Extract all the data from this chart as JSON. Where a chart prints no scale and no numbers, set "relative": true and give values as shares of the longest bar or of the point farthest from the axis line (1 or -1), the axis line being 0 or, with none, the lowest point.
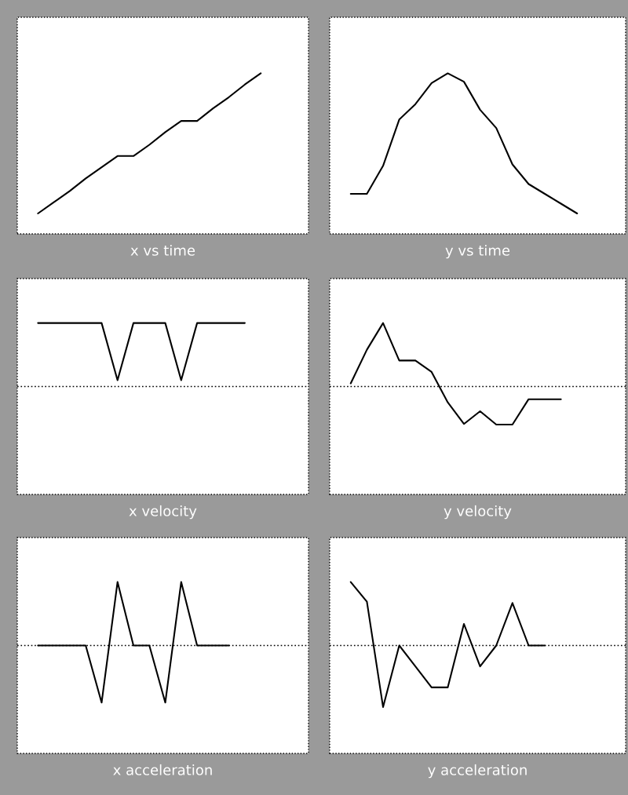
{
  "chart_data": [
    {
      "type": "line",
      "xlabel": "x vs time",
      "relative": true,
      "categories": [
        null,
        null,
        null,
        null,
        null,
        null,
        null,
        null,
        null,
        null,
        null,
        null,
        null,
        null,
        null
      ],
      "series": [
        {
          "color": "#000000",
          "values": [
            0,
            0.08,
            0.16,
            0.25,
            0.33,
            0.41,
            0.41,
            0.49,
            0.58,
            0.66,
            0.66,
            0.75,
            0.83,
            0.92,
            1
          ]
        }
      ],
      "tick_labels": false,
      "grid": false
    },
    {
      "type": "line",
      "xlabel": "y vs time",
      "relative": true,
      "categories": [
        null,
        null,
        null,
        null,
        null,
        null,
        null,
        null,
        null,
        null,
        null,
        null,
        null,
        null,
        null
      ],
      "series": [
        {
          "color": "#000000",
          "values": [
            0.14,
            0.14,
            0.34,
            0.67,
            0.78,
            0.93,
            1,
            0.94,
            0.74,
            0.61,
            0.35,
            0.21,
            0.14,
            0.07,
            0
          ]
        }
      ],
      "tick_labels": false,
      "grid": false
    },
    {
      "type": "line",
      "xlabel": "x velocity",
      "relative": true,
      "categories": [
        null,
        null,
        null,
        null,
        null,
        null,
        null,
        null,
        null,
        null,
        null,
        null,
        null,
        null
      ],
      "series": [
        {
          "color": "#000000",
          "values": [
            1,
            1,
            1,
            1,
            1,
            0.1,
            1,
            1,
            1,
            0.1,
            1,
            1,
            1,
            1
          ]
        }
      ],
      "ref_lines": [
        {
          "axis": "y",
          "value": 0,
          "color": "#000000",
          "line_style": "dotted"
        }
      ],
      "tick_labels": false,
      "grid": false
    },
    {
      "type": "line",
      "xlabel": "y velocity",
      "relative": true,
      "categories": [
        null,
        null,
        null,
        null,
        null,
        null,
        null,
        null,
        null,
        null,
        null,
        null,
        null,
        null
      ],
      "series": [
        {
          "color": "#000000",
          "values": [
            0.05,
            0.58,
            1,
            0.41,
            0.41,
            0.23,
            -0.25,
            -0.59,
            -0.39,
            -0.6,
            -0.6,
            -0.2,
            -0.2,
            -0.2
          ]
        }
      ],
      "ref_lines": [
        {
          "axis": "y",
          "value": 0,
          "color": "#000000",
          "line_style": "dotted"
        }
      ],
      "tick_labels": false,
      "grid": false
    },
    {
      "type": "line",
      "xlabel": "x acceleration",
      "relative": true,
      "categories": [
        null,
        null,
        null,
        null,
        null,
        null,
        null,
        null,
        null,
        null,
        null,
        null,
        null
      ],
      "series": [
        {
          "color": "#000000",
          "values": [
            0,
            0,
            0,
            0,
            -0.9,
            1,
            0,
            0,
            -0.9,
            1,
            0,
            0,
            0
          ]
        }
      ],
      "ref_lines": [
        {
          "axis": "y",
          "value": 0,
          "color": "#000000",
          "line_style": "dotted"
        }
      ],
      "tick_labels": false,
      "grid": false
    },
    {
      "type": "line",
      "xlabel": "y acceleration",
      "relative": true,
      "categories": [
        null,
        null,
        null,
        null,
        null,
        null,
        null,
        null,
        null,
        null,
        null,
        null,
        null
      ],
      "series": [
        {
          "color": "#000000",
          "values": [
            1,
            0.69,
            -0.97,
            0,
            -0.33,
            -0.66,
            -0.66,
            0.34,
            -0.33,
            0,
            0.67,
            0,
            0
          ]
        }
      ],
      "ref_lines": [
        {
          "axis": "y",
          "value": 0,
          "color": "#000000",
          "line_style": "dotted"
        }
      ],
      "tick_labels": false,
      "grid": false
    }
  ]
}
